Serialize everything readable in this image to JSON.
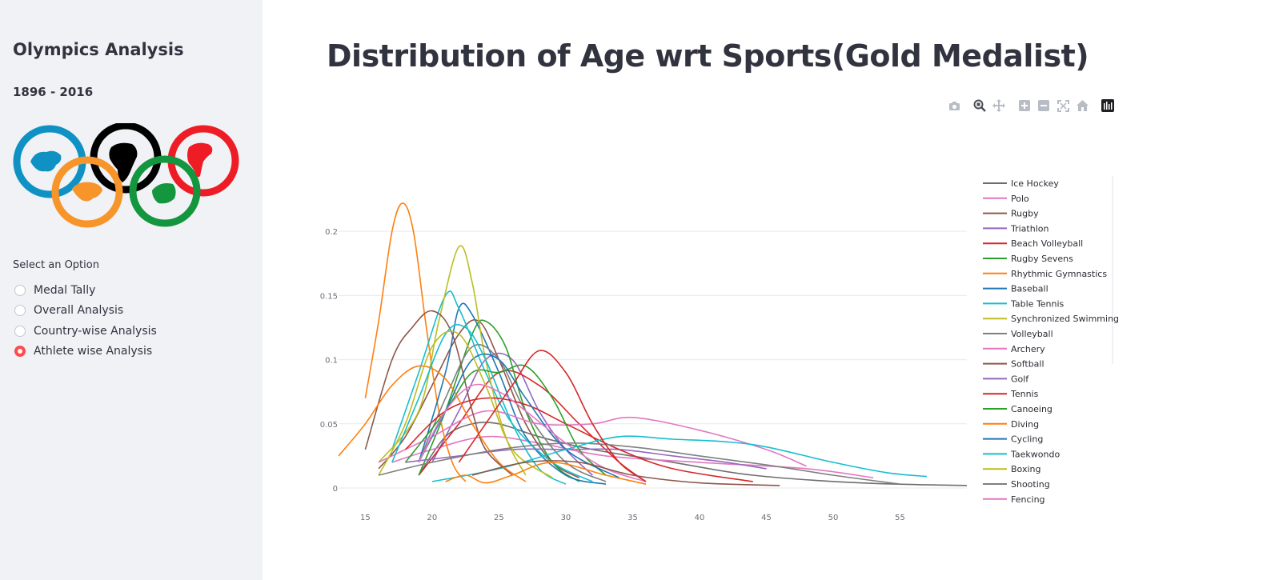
{
  "sidebar": {
    "title": "Olympics Analysis",
    "years": "1896 - 2016",
    "radio_label": "Select an Option",
    "options": [
      "Medal Tally",
      "Overall Analysis",
      "Country-wise Analysis",
      "Athlete wise Analysis"
    ],
    "selected_index": 3,
    "ring_colors": [
      "#0f92c3",
      "#000000",
      "#ee1c25",
      "#f7942a",
      "#13963e"
    ]
  },
  "main": {
    "title": "Distribution of Age wrt Sports(Gold Medalist)",
    "modebar_icons": [
      "camera-icon",
      "zoom-icon",
      "pan-icon",
      "zoom-in-icon",
      "zoom-out-icon",
      "autoscale-icon",
      "reset-axes-icon",
      "plotly-logo-icon"
    ]
  },
  "chart_data": {
    "type": "line",
    "title": "",
    "xlabel": "",
    "ylabel": "",
    "xlim": [
      13,
      60
    ],
    "ylim": [
      0,
      0.24
    ],
    "x_ticks": [
      15,
      20,
      25,
      30,
      35,
      40,
      45,
      50,
      55
    ],
    "y_ticks": [
      0,
      0.05,
      0.1,
      0.15,
      0.2
    ],
    "y_tick_labels": [
      "0",
      "0.05",
      "0.1",
      "0.15",
      "0.2"
    ],
    "grid": true,
    "legend_position": "right",
    "series": [
      {
        "name": "Ice Hockey",
        "color": "#6e6e6e",
        "points": [
          [
            19,
            0.01
          ],
          [
            21,
            0.04
          ],
          [
            23,
            0.05
          ],
          [
            25,
            0.05
          ],
          [
            28,
            0.04
          ],
          [
            32,
            0.03
          ],
          [
            38,
            0.02
          ],
          [
            44,
            0.01
          ],
          [
            52,
            0.004
          ],
          [
            60,
            0.002
          ]
        ]
      },
      {
        "name": "Polo",
        "color": "#e377c2",
        "points": [
          [
            17,
            0.02
          ],
          [
            20,
            0.03
          ],
          [
            24,
            0.04
          ],
          [
            28,
            0.035
          ],
          [
            33,
            0.025
          ],
          [
            40,
            0.02
          ],
          [
            48,
            0.015
          ],
          [
            53,
            0.008
          ]
        ]
      },
      {
        "name": "Rugby",
        "color": "#8c564b",
        "points": [
          [
            16,
            0.015
          ],
          [
            18,
            0.04
          ],
          [
            20,
            0.08
          ],
          [
            22,
            0.12
          ],
          [
            23.5,
            0.13
          ],
          [
            25,
            0.1
          ],
          [
            27,
            0.05
          ],
          [
            29,
            0.02
          ],
          [
            31,
            0.008
          ]
        ]
      },
      {
        "name": "Triathlon",
        "color": "#9467bd",
        "points": [
          [
            20,
            0.02
          ],
          [
            22,
            0.06
          ],
          [
            24,
            0.1
          ],
          [
            26,
            0.1
          ],
          [
            28,
            0.06
          ],
          [
            30,
            0.03
          ],
          [
            32,
            0.01
          ]
        ]
      },
      {
        "name": "Beach Volleyball",
        "color": "#d62728",
        "points": [
          [
            19,
            0.01
          ],
          [
            22,
            0.05
          ],
          [
            25,
            0.09
          ],
          [
            28,
            0.08
          ],
          [
            31,
            0.05
          ],
          [
            34,
            0.02
          ],
          [
            36,
            0.005
          ]
        ]
      },
      {
        "name": "Rugby Sevens",
        "color": "#2ca02c",
        "points": [
          [
            19,
            0.01
          ],
          [
            21,
            0.06
          ],
          [
            23,
            0.12
          ],
          [
            24,
            0.13
          ],
          [
            25.5,
            0.11
          ],
          [
            27,
            0.06
          ],
          [
            29,
            0.02
          ],
          [
            31,
            0.005
          ]
        ]
      },
      {
        "name": "Rhythmic Gymnastics",
        "color": "#ff7f0e",
        "points": [
          [
            15,
            0.07
          ],
          [
            16,
            0.13
          ],
          [
            17,
            0.2
          ],
          [
            17.8,
            0.222
          ],
          [
            18.6,
            0.2
          ],
          [
            19.5,
            0.13
          ],
          [
            20.5,
            0.06
          ],
          [
            21.5,
            0.02
          ],
          [
            22.5,
            0.005
          ]
        ]
      },
      {
        "name": "Baseball",
        "color": "#1f77b4",
        "points": [
          [
            19,
            0.02
          ],
          [
            21,
            0.09
          ],
          [
            22,
            0.14
          ],
          [
            23,
            0.135
          ],
          [
            25,
            0.09
          ],
          [
            27,
            0.04
          ],
          [
            30,
            0.01
          ],
          [
            33,
            0.003
          ]
        ]
      },
      {
        "name": "Table Tennis",
        "color": "#17becf",
        "points": [
          [
            17,
            0.03
          ],
          [
            19,
            0.09
          ],
          [
            21,
            0.15
          ],
          [
            22,
            0.14
          ],
          [
            24,
            0.09
          ],
          [
            26,
            0.05
          ],
          [
            29,
            0.02
          ],
          [
            32,
            0.005
          ]
        ]
      },
      {
        "name": "Synchronized Swimming",
        "color": "#bcbd22",
        "points": [
          [
            16,
            0.02
          ],
          [
            19,
            0.06
          ],
          [
            20.5,
            0.13
          ],
          [
            22,
            0.188
          ],
          [
            23,
            0.16
          ],
          [
            24,
            0.1
          ],
          [
            25.5,
            0.04
          ],
          [
            27,
            0.01
          ]
        ]
      },
      {
        "name": "Volleyball",
        "color": "#7f7f7f",
        "points": [
          [
            19,
            0.02
          ],
          [
            21,
            0.07
          ],
          [
            23,
            0.11
          ],
          [
            25,
            0.1
          ],
          [
            27,
            0.06
          ],
          [
            30,
            0.02
          ],
          [
            33,
            0.005
          ]
        ]
      },
      {
        "name": "Archery",
        "color": "#e377c2",
        "points": [
          [
            16,
            0.02
          ],
          [
            20,
            0.04
          ],
          [
            24,
            0.06
          ],
          [
            28,
            0.05
          ],
          [
            32,
            0.05
          ],
          [
            35,
            0.055
          ],
          [
            40,
            0.045
          ],
          [
            45,
            0.03
          ],
          [
            48,
            0.017
          ]
        ]
      },
      {
        "name": "Softball",
        "color": "#8c564b",
        "points": [
          [
            15,
            0.03
          ],
          [
            17,
            0.1
          ],
          [
            18.5,
            0.125
          ],
          [
            20,
            0.138
          ],
          [
            21.5,
            0.12
          ],
          [
            23,
            0.06
          ],
          [
            24,
            0.03
          ],
          [
            26,
            0.01
          ]
        ]
      },
      {
        "name": "Golf",
        "color": "#9467bd",
        "points": [
          [
            18,
            0.02
          ],
          [
            22,
            0.025
          ],
          [
            26,
            0.03
          ],
          [
            30,
            0.03
          ],
          [
            34,
            0.03
          ],
          [
            38,
            0.025
          ],
          [
            42,
            0.02
          ],
          [
            45,
            0.015
          ]
        ]
      },
      {
        "name": "Tennis",
        "color": "#d62728",
        "points": [
          [
            18,
            0.03
          ],
          [
            21,
            0.06
          ],
          [
            24,
            0.07
          ],
          [
            27,
            0.065
          ],
          [
            30,
            0.05
          ],
          [
            34,
            0.03
          ],
          [
            38,
            0.015
          ],
          [
            44,
            0.005
          ]
        ]
      },
      {
        "name": "Canoeing",
        "color": "#2ca02c",
        "points": [
          [
            18,
            0.02
          ],
          [
            21,
            0.06
          ],
          [
            23,
            0.09
          ],
          [
            25,
            0.09
          ],
          [
            27,
            0.095
          ],
          [
            29,
            0.07
          ],
          [
            31,
            0.03
          ],
          [
            33,
            0.01
          ]
        ]
      },
      {
        "name": "Diving",
        "color": "#ff7f0e",
        "points": [
          [
            13,
            0.025
          ],
          [
            15,
            0.05
          ],
          [
            17,
            0.08
          ],
          [
            19,
            0.095
          ],
          [
            21,
            0.085
          ],
          [
            23,
            0.05
          ],
          [
            25,
            0.02
          ],
          [
            27,
            0.005
          ]
        ]
      },
      {
        "name": "Cycling",
        "color": "#1f77b4",
        "points": [
          [
            19,
            0.02
          ],
          [
            21,
            0.06
          ],
          [
            23,
            0.1
          ],
          [
            25,
            0.1
          ],
          [
            27,
            0.07
          ],
          [
            30,
            0.03
          ],
          [
            34,
            0.008
          ]
        ]
      },
      {
        "name": "Taekwondo",
        "color": "#17becf",
        "points": [
          [
            17,
            0.02
          ],
          [
            19,
            0.07
          ],
          [
            21,
            0.12
          ],
          [
            22.5,
            0.125
          ],
          [
            24,
            0.1
          ],
          [
            26,
            0.05
          ],
          [
            28,
            0.015
          ],
          [
            30,
            0.003
          ]
        ]
      },
      {
        "name": "Boxing",
        "color": "#bcbd22",
        "points": [
          [
            16,
            0.01
          ],
          [
            18,
            0.05
          ],
          [
            20,
            0.11
          ],
          [
            22,
            0.12
          ],
          [
            24,
            0.08
          ],
          [
            26,
            0.03
          ],
          [
            29,
            0.008
          ]
        ]
      },
      {
        "name": "Shooting",
        "color": "#7f7f7f",
        "points": [
          [
            16,
            0.01
          ],
          [
            20,
            0.02
          ],
          [
            25,
            0.03
          ],
          [
            30,
            0.035
          ],
          [
            35,
            0.032
          ],
          [
            40,
            0.025
          ],
          [
            45,
            0.018
          ],
          [
            50,
            0.01
          ],
          [
            55,
            0.003
          ]
        ]
      },
      {
        "name": "Fencing",
        "color": "#e377c2",
        "points": [
          [
            19,
            0.02
          ],
          [
            21,
            0.06
          ],
          [
            23,
            0.08
          ],
          [
            25,
            0.075
          ],
          [
            27,
            0.06
          ],
          [
            30,
            0.035
          ],
          [
            33,
            0.015
          ],
          [
            36,
            0.005
          ]
        ]
      },
      {
        "name": "",
        "color": "#17becf",
        "points": [
          [
            20,
            0.005
          ],
          [
            25,
            0.015
          ],
          [
            30,
            0.03
          ],
          [
            34,
            0.04
          ],
          [
            38,
            0.038
          ],
          [
            42,
            0.036
          ],
          [
            45,
            0.032
          ],
          [
            50,
            0.02
          ],
          [
            54,
            0.012
          ],
          [
            57,
            0.009
          ]
        ]
      },
      {
        "name": "",
        "color": "#d62728",
        "points": [
          [
            22,
            0.02
          ],
          [
            24,
            0.05
          ],
          [
            26,
            0.08
          ],
          [
            28,
            0.107
          ],
          [
            30,
            0.09
          ],
          [
            32,
            0.05
          ],
          [
            34,
            0.02
          ],
          [
            36,
            0.005
          ]
        ]
      },
      {
        "name": "",
        "color": "#8c564b",
        "points": [
          [
            23,
            0.01
          ],
          [
            27,
            0.02
          ],
          [
            31,
            0.02
          ],
          [
            35,
            0.01
          ],
          [
            40,
            0.004
          ],
          [
            46,
            0.002
          ]
        ]
      },
      {
        "name": "",
        "color": "#ff7f0e",
        "points": [
          [
            21,
            0.005
          ],
          [
            22.5,
            0.01
          ],
          [
            24,
            0.004
          ],
          [
            26,
            0.01
          ],
          [
            29,
            0.02
          ],
          [
            33,
            0.01
          ],
          [
            36,
            0.003
          ]
        ]
      }
    ]
  }
}
